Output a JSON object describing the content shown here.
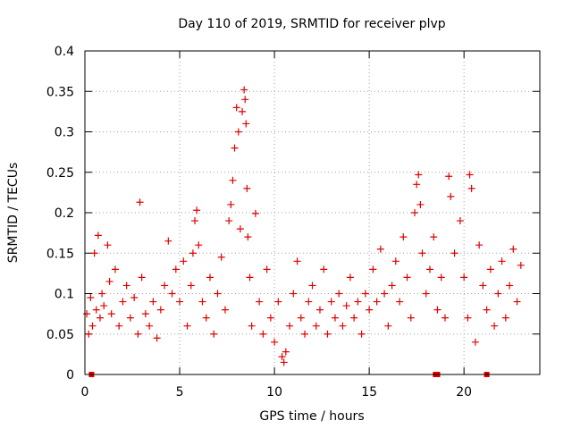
{
  "chart_data": {
    "type": "scatter",
    "title": "Day 110 of 2019, SRMTID for receiver plvp",
    "xlabel": "GPS time / hours",
    "ylabel": "SRMTID / TECUs",
    "xlim": [
      0,
      24
    ],
    "ylim": [
      0,
      0.4
    ],
    "xticks": [
      0,
      5,
      10,
      15,
      20
    ],
    "xtick_labels": [
      "0",
      "5",
      "10",
      "15",
      "20"
    ],
    "yticks": [
      0,
      0.05,
      0.1,
      0.15,
      0.2,
      0.25,
      0.3,
      0.35,
      0.4
    ],
    "ytick_labels": [
      "0",
      "0.05",
      "0.1",
      "0.15",
      "0.2",
      "0.25",
      "0.3",
      "0.35",
      "0.4"
    ],
    "grid": true,
    "marker": "+",
    "color": "#e00000",
    "series": [
      {
        "name": "SRMTID",
        "points": [
          [
            0.1,
            0.075
          ],
          [
            0.2,
            0.05
          ],
          [
            0.3,
            0.095
          ],
          [
            0.4,
            0.06
          ],
          [
            0.5,
            0.15
          ],
          [
            0.6,
            0.08
          ],
          [
            0.7,
            0.172
          ],
          [
            0.8,
            0.07
          ],
          [
            0.9,
            0.1
          ],
          [
            1.0,
            0.085
          ],
          [
            1.2,
            0.16
          ],
          [
            1.3,
            0.115
          ],
          [
            1.4,
            0.075
          ],
          [
            1.6,
            0.13
          ],
          [
            1.8,
            0.06
          ],
          [
            2.0,
            0.09
          ],
          [
            2.2,
            0.11
          ],
          [
            2.4,
            0.07
          ],
          [
            2.6,
            0.095
          ],
          [
            2.8,
            0.05
          ],
          [
            2.9,
            0.213
          ],
          [
            3.0,
            0.12
          ],
          [
            3.2,
            0.075
          ],
          [
            3.4,
            0.06
          ],
          [
            3.6,
            0.09
          ],
          [
            3.8,
            0.045
          ],
          [
            4.0,
            0.08
          ],
          [
            4.2,
            0.11
          ],
          [
            4.4,
            0.165
          ],
          [
            4.6,
            0.1
          ],
          [
            4.8,
            0.13
          ],
          [
            5.0,
            0.09
          ],
          [
            5.2,
            0.14
          ],
          [
            5.4,
            0.06
          ],
          [
            5.6,
            0.11
          ],
          [
            5.7,
            0.15
          ],
          [
            5.8,
            0.19
          ],
          [
            5.9,
            0.203
          ],
          [
            6.0,
            0.16
          ],
          [
            6.2,
            0.09
          ],
          [
            6.4,
            0.07
          ],
          [
            6.6,
            0.12
          ],
          [
            6.8,
            0.05
          ],
          [
            7.0,
            0.1
          ],
          [
            7.2,
            0.145
          ],
          [
            7.4,
            0.08
          ],
          [
            7.6,
            0.19
          ],
          [
            7.7,
            0.21
          ],
          [
            7.8,
            0.24
          ],
          [
            7.9,
            0.28
          ],
          [
            8.0,
            0.33
          ],
          [
            8.1,
            0.3
          ],
          [
            8.2,
            0.18
          ],
          [
            8.3,
            0.325
          ],
          [
            8.4,
            0.352
          ],
          [
            8.45,
            0.34
          ],
          [
            8.5,
            0.31
          ],
          [
            8.55,
            0.23
          ],
          [
            8.6,
            0.17
          ],
          [
            8.7,
            0.12
          ],
          [
            8.8,
            0.06
          ],
          [
            9.0,
            0.199
          ],
          [
            9.2,
            0.09
          ],
          [
            9.4,
            0.05
          ],
          [
            9.6,
            0.13
          ],
          [
            9.8,
            0.07
          ],
          [
            10.0,
            0.04
          ],
          [
            10.2,
            0.09
          ],
          [
            10.4,
            0.022
          ],
          [
            10.5,
            0.015
          ],
          [
            10.6,
            0.028
          ],
          [
            10.8,
            0.06
          ],
          [
            11.0,
            0.1
          ],
          [
            11.2,
            0.14
          ],
          [
            11.4,
            0.07
          ],
          [
            11.6,
            0.05
          ],
          [
            11.8,
            0.09
          ],
          [
            12.0,
            0.11
          ],
          [
            12.2,
            0.06
          ],
          [
            12.4,
            0.08
          ],
          [
            12.6,
            0.13
          ],
          [
            12.8,
            0.05
          ],
          [
            13.0,
            0.09
          ],
          [
            13.2,
            0.07
          ],
          [
            13.4,
            0.1
          ],
          [
            13.6,
            0.06
          ],
          [
            13.8,
            0.085
          ],
          [
            14.0,
            0.12
          ],
          [
            14.2,
            0.07
          ],
          [
            14.4,
            0.09
          ],
          [
            14.6,
            0.05
          ],
          [
            14.8,
            0.1
          ],
          [
            15.0,
            0.08
          ],
          [
            15.2,
            0.13
          ],
          [
            15.4,
            0.09
          ],
          [
            15.6,
            0.155
          ],
          [
            15.8,
            0.1
          ],
          [
            16.0,
            0.06
          ],
          [
            16.2,
            0.11
          ],
          [
            16.4,
            0.14
          ],
          [
            16.6,
            0.09
          ],
          [
            16.8,
            0.17
          ],
          [
            17.0,
            0.12
          ],
          [
            17.2,
            0.07
          ],
          [
            17.4,
            0.2
          ],
          [
            17.5,
            0.235
          ],
          [
            17.6,
            0.247
          ],
          [
            17.7,
            0.21
          ],
          [
            17.8,
            0.15
          ],
          [
            18.0,
            0.1
          ],
          [
            18.2,
            0.13
          ],
          [
            18.4,
            0.17
          ],
          [
            18.6,
            0.08
          ],
          [
            18.8,
            0.12
          ],
          [
            19.0,
            0.07
          ],
          [
            19.2,
            0.245
          ],
          [
            19.3,
            0.22
          ],
          [
            19.5,
            0.15
          ],
          [
            19.8,
            0.19
          ],
          [
            20.0,
            0.12
          ],
          [
            20.2,
            0.07
          ],
          [
            20.3,
            0.247
          ],
          [
            20.4,
            0.23
          ],
          [
            20.6,
            0.04
          ],
          [
            20.8,
            0.16
          ],
          [
            21.0,
            0.11
          ],
          [
            21.2,
            0.08
          ],
          [
            21.4,
            0.13
          ],
          [
            21.6,
            0.06
          ],
          [
            21.8,
            0.1
          ],
          [
            22.0,
            0.14
          ],
          [
            22.2,
            0.07
          ],
          [
            22.4,
            0.11
          ],
          [
            22.6,
            0.155
          ],
          [
            22.8,
            0.09
          ],
          [
            23.0,
            0.135
          ],
          [
            0.35,
            0.0
          ],
          [
            18.5,
            0.0
          ],
          [
            18.6,
            0.0
          ],
          [
            21.2,
            0.0
          ]
        ]
      }
    ]
  }
}
